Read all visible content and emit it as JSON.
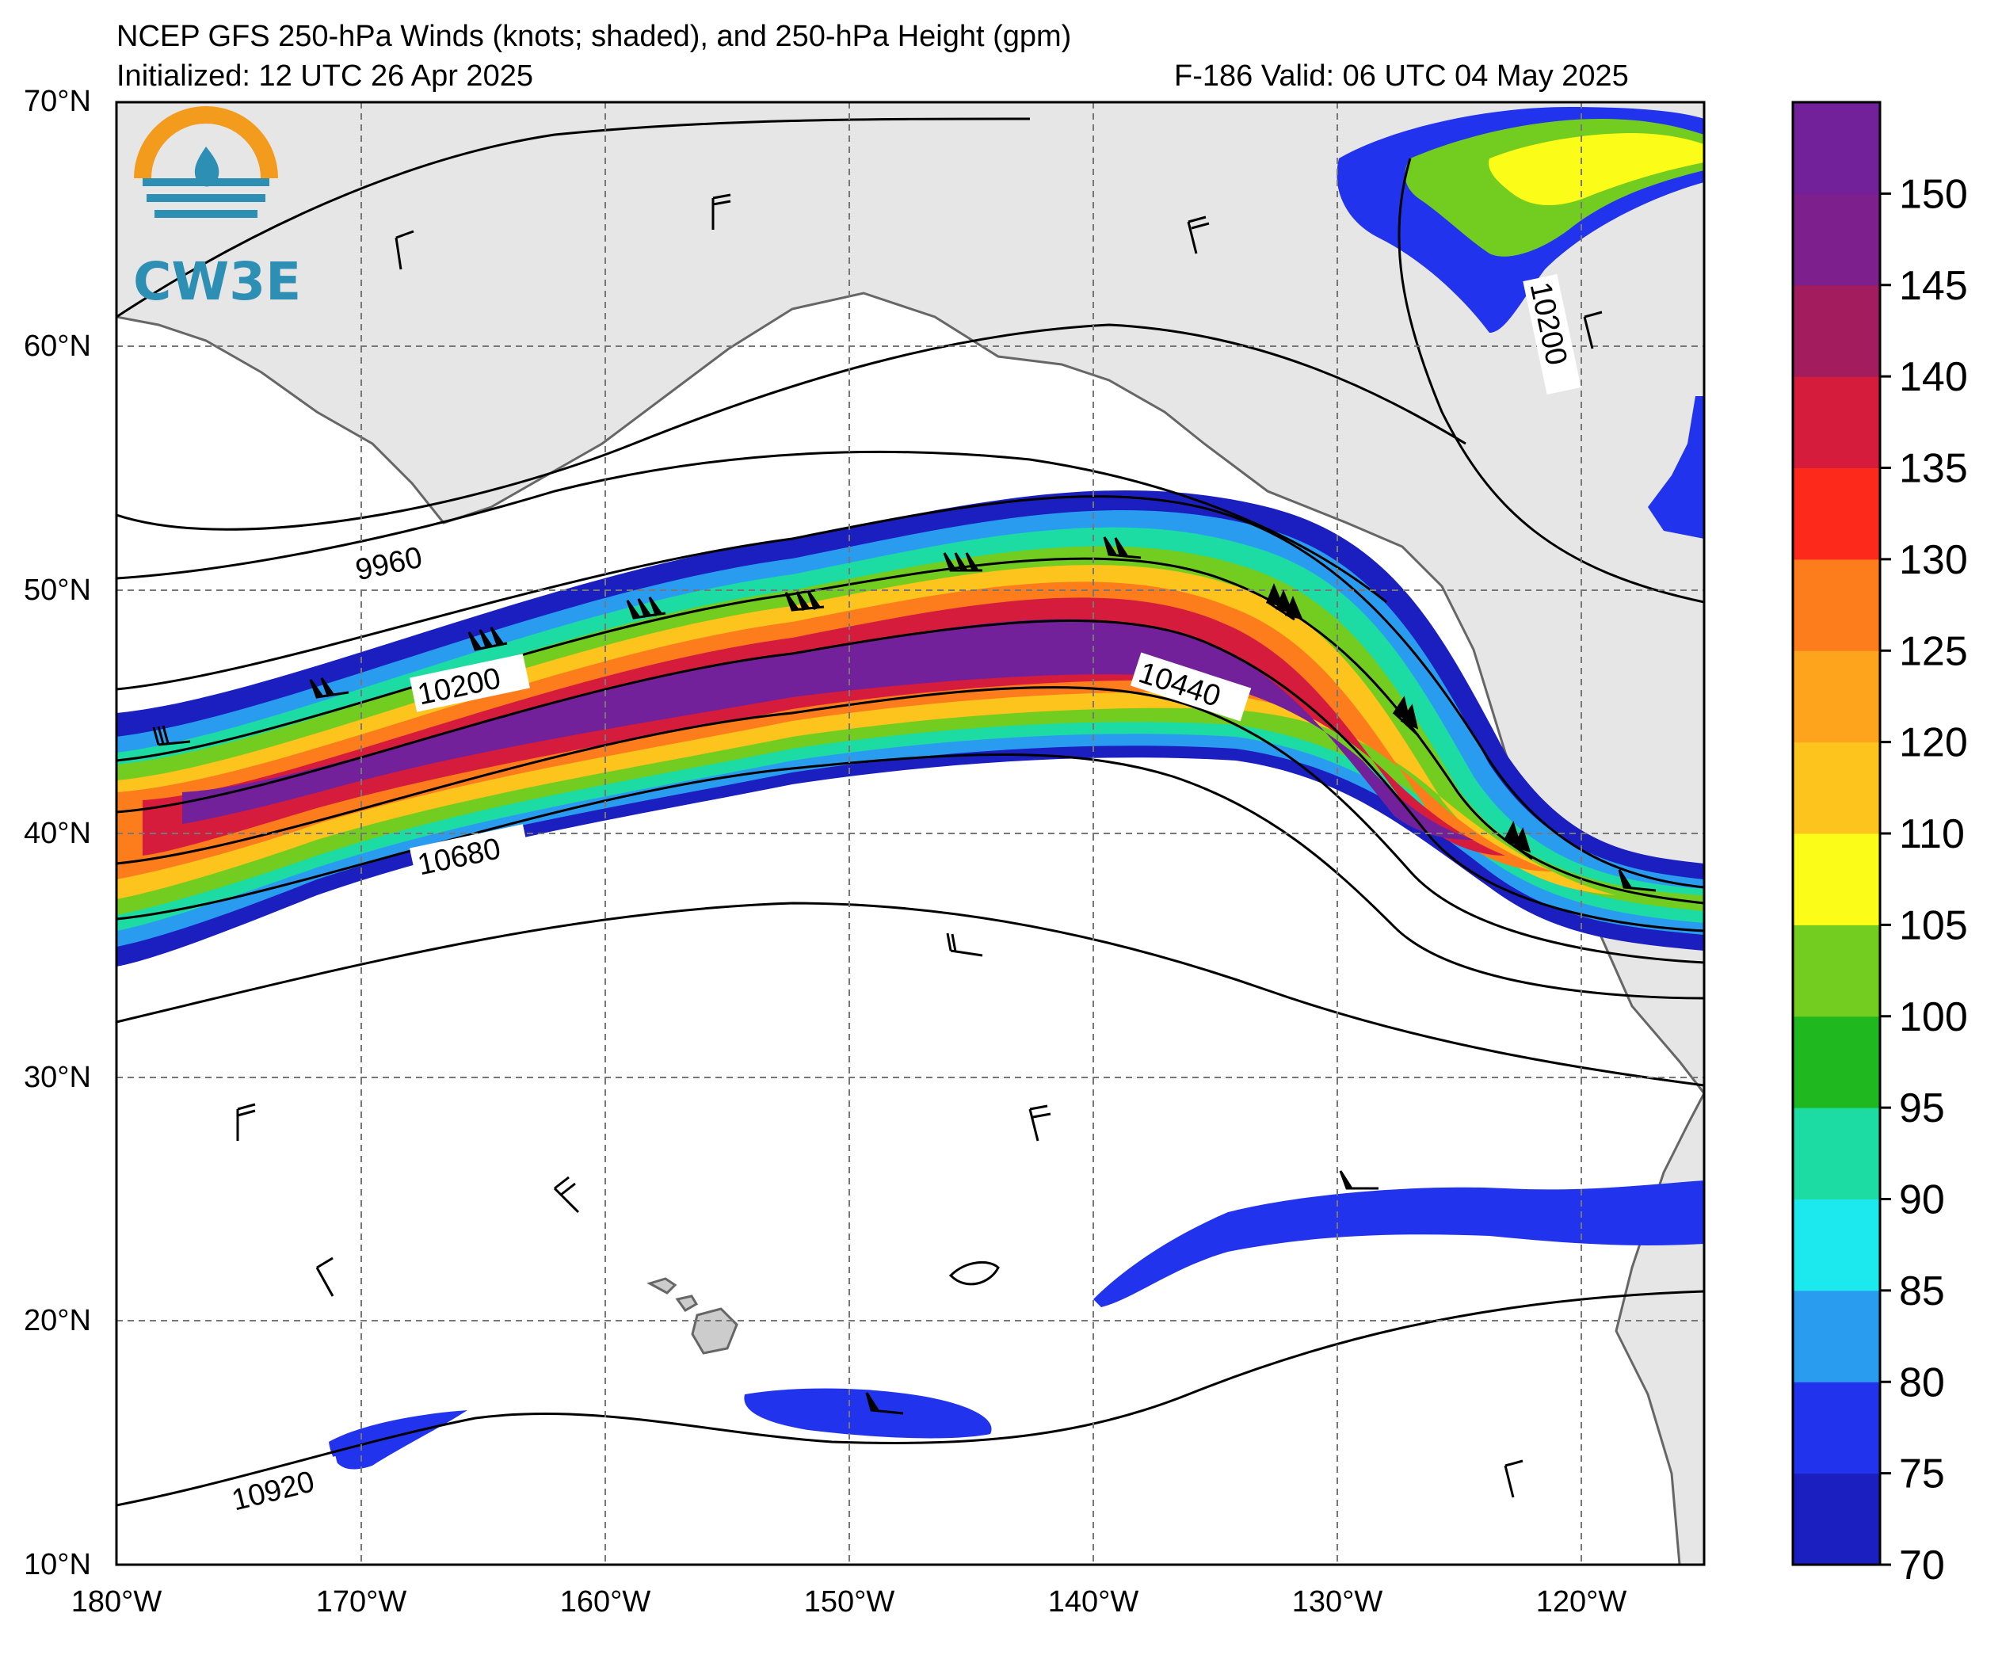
{
  "header": {
    "title_line": "NCEP GFS 250-hPa Winds (knots; shaded), and 250-hPa Height (gpm)",
    "init_line": "Initialized: 12 UTC 26 Apr 2025",
    "valid_line": "F-186  Valid: 06 UTC 04 May 2025"
  },
  "logo": {
    "text": "CW3E",
    "colors": {
      "ring": "#f29b1d",
      "wave": "#2e8fb5"
    }
  },
  "map": {
    "lat_labels": [
      "70°N",
      "60°N",
      "50°N",
      "40°N",
      "30°N",
      "20°N",
      "10°N"
    ],
    "lon_labels": [
      "180°W",
      "170°W",
      "160°W",
      "150°W",
      "140°W",
      "130°W",
      "120°W"
    ],
    "contour_labels": [
      "9960",
      "10200",
      "10440",
      "10680",
      "10920",
      "10200"
    ],
    "land_color": "#e6e6e6",
    "coast_color": "#666666"
  },
  "colorbar": {
    "ticks": [
      "70",
      "75",
      "80",
      "85",
      "90",
      "95",
      "100",
      "105",
      "110",
      "120",
      "125",
      "130",
      "135",
      "140",
      "145",
      "150"
    ],
    "colors": [
      "#1c1fbf",
      "#2233ee",
      "#2a9cf0",
      "#1ce9ee",
      "#1cdca3",
      "#1fb91f",
      "#73cc20",
      "#fcfc19",
      "#fcc41c",
      "#fda41c",
      "#fd7c1c",
      "#fd2a1c",
      "#d51c3c",
      "#a21c5e",
      "#7d1f8d",
      "#72219a"
    ]
  }
}
